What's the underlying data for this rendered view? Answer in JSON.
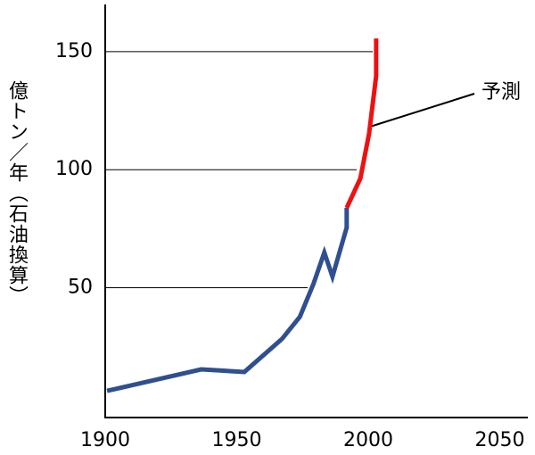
{
  "chart_data": {
    "type": "line",
    "ylabel": "億トン／年（石油換算）",
    "annotation": "予測",
    "xlim": [
      1900,
      2060
    ],
    "xticks": [
      1900,
      1950,
      2000,
      2050
    ],
    "ylim": [
      -5,
      170
    ],
    "yticks": [
      50,
      100,
      150
    ],
    "series": [
      {
        "color": "#2f4f8f",
        "x": [
          1900.7,
          1936.5,
          1952.9,
          1967.2,
          1974,
          1979.2,
          1983.3,
          1986.4,
          1991.8,
          1991.8
        ],
        "values": [
          6.3,
          15.4,
          14.3,
          28.3,
          37.7,
          51.7,
          64.9,
          54.7,
          75.5,
          83.8
        ]
      },
      {
        "color": "#ee1111",
        "x": [
          1991.8,
          1997,
          2000.3,
          2003,
          2003
        ],
        "values": [
          83.8,
          96.3,
          115.2,
          139.7,
          155.6
        ]
      }
    ]
  }
}
